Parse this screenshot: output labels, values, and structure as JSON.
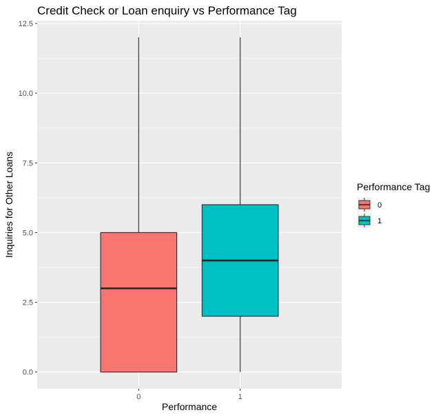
{
  "chart_data": {
    "type": "boxplot",
    "title": "Credit Check or Loan enquiry vs Performance Tag",
    "xlabel": "Performance",
    "ylabel": "Inquiries for Other Loans",
    "categories": [
      "0",
      "1"
    ],
    "ylim": [
      -0.6,
      12.6
    ],
    "yticks": [
      0.0,
      2.5,
      5.0,
      7.5,
      10.0,
      12.5
    ],
    "ytick_labels": [
      "0.0",
      "2.5",
      "5.0",
      "7.5",
      "10.0",
      "12.5"
    ],
    "grid": true,
    "legend": {
      "title": "Performance Tag",
      "placement": "right",
      "entries": [
        "0",
        "1"
      ]
    },
    "boxes": [
      {
        "category": "0",
        "min": 0,
        "q1": 0,
        "median": 3,
        "q3": 5,
        "max": 12,
        "color": "#F8766D"
      },
      {
        "category": "1",
        "min": 0,
        "q1": 2,
        "median": 4,
        "q3": 6,
        "max": 12,
        "color": "#00BFC4"
      }
    ],
    "colors": {
      "panel_background": "#EBEBEB",
      "grid": "#FFFFFF",
      "box_outline": "#333333"
    }
  }
}
